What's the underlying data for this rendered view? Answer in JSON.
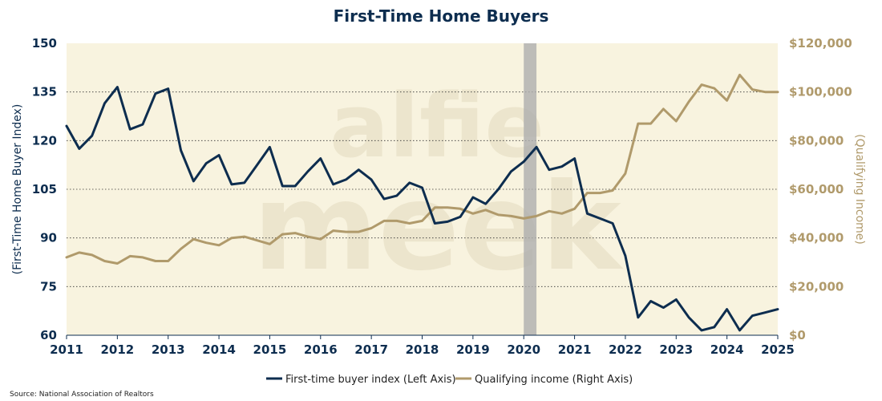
{
  "chart_data": {
    "type": "line",
    "title": "First-Time Home Buyers",
    "ylabel_left": "(First-Time Home Buyer Index)",
    "ylabel_right": "(Qualifying Income)",
    "ylim_left": [
      60,
      150
    ],
    "ylim_right": [
      0,
      120000
    ],
    "left_ticks": [
      "150",
      "135",
      "120",
      "105",
      "90",
      "75",
      "60"
    ],
    "right_ticks": [
      "$120,000",
      "$100,000",
      "$80,000",
      "$60,000",
      "$40,000",
      "$20,000",
      "$0"
    ],
    "xlim": [
      2011,
      2025
    ],
    "x_ticks": [
      "2011",
      "2012",
      "2013",
      "2014",
      "2015",
      "2016",
      "2017",
      "2018",
      "2019",
      "2020",
      "2021",
      "2022",
      "2023",
      "2024",
      "2025"
    ],
    "shaded_period": [
      2020.0,
      2020.25
    ],
    "series": [
      {
        "name": "First-time buyer index (Left Axis)",
        "axis": "left",
        "color": "#0d2d4f",
        "x": [
          2011.0,
          2011.25,
          2011.5,
          2011.75,
          2012.0,
          2012.25,
          2012.5,
          2012.75,
          2013.0,
          2013.25,
          2013.5,
          2013.75,
          2014.0,
          2014.25,
          2014.5,
          2014.75,
          2015.0,
          2015.25,
          2015.5,
          2015.75,
          2016.0,
          2016.25,
          2016.5,
          2016.75,
          2017.0,
          2017.25,
          2017.5,
          2017.75,
          2018.0,
          2018.25,
          2018.5,
          2018.75,
          2019.0,
          2019.25,
          2019.5,
          2019.75,
          2020.0,
          2020.25,
          2020.5,
          2020.75,
          2021.0,
          2021.25,
          2021.5,
          2021.75,
          2022.0,
          2022.25,
          2022.5,
          2022.75,
          2023.0,
          2023.25,
          2023.5,
          2023.75,
          2024.0,
          2024.25,
          2024.5,
          2024.75,
          2025.0
        ],
        "values": [
          124.5,
          117.5,
          121.5,
          131.5,
          136.5,
          123.5,
          125,
          134.5,
          136,
          117,
          107.5,
          113,
          115.5,
          106.5,
          107,
          112.5,
          118,
          106,
          106,
          110.5,
          114.5,
          106.5,
          108,
          111,
          108,
          102,
          103,
          107,
          105.5,
          94.5,
          95,
          96.5,
          102.5,
          100.5,
          105,
          110.5,
          113.5,
          118,
          111,
          112,
          114.5,
          97.5,
          96,
          94.5,
          84.5,
          65.5,
          70.5,
          68.5,
          71,
          65.5,
          61.5,
          62.5,
          68,
          61.5,
          66,
          67,
          68
        ]
      },
      {
        "name": "Qualifying income (Right Axis)",
        "axis": "right",
        "color": "#b09a6b",
        "x": [
          2011.0,
          2011.25,
          2011.5,
          2011.75,
          2012.0,
          2012.25,
          2012.5,
          2012.75,
          2013.0,
          2013.25,
          2013.5,
          2013.75,
          2014.0,
          2014.25,
          2014.5,
          2014.75,
          2015.0,
          2015.25,
          2015.5,
          2015.75,
          2016.0,
          2016.25,
          2016.5,
          2016.75,
          2017.0,
          2017.25,
          2017.5,
          2017.75,
          2018.0,
          2018.25,
          2018.5,
          2018.75,
          2019.0,
          2019.25,
          2019.5,
          2019.75,
          2020.0,
          2020.25,
          2020.5,
          2020.75,
          2021.0,
          2021.25,
          2021.5,
          2021.75,
          2022.0,
          2022.25,
          2022.5,
          2022.75,
          2023.0,
          2023.25,
          2023.5,
          2023.75,
          2024.0,
          2024.25,
          2024.5,
          2024.75,
          2025.0
        ],
        "values": [
          32000,
          34000,
          33000,
          30500,
          29500,
          32500,
          32000,
          30500,
          30500,
          35500,
          39500,
          38000,
          37000,
          40000,
          40500,
          39000,
          37500,
          41500,
          42000,
          40500,
          39500,
          43000,
          42500,
          42500,
          44000,
          47000,
          47000,
          46000,
          47000,
          52500,
          52500,
          52000,
          50000,
          51500,
          49500,
          49000,
          48000,
          49000,
          51000,
          50000,
          52000,
          58500,
          58500,
          59500,
          66500,
          87000,
          87000,
          93000,
          88000,
          96000,
          103000,
          101500,
          96500,
          107000,
          101000,
          100000,
          100000
        ]
      }
    ],
    "watermark": [
      "alfie",
      "meek"
    ],
    "source": "Source: National Association of Realtors"
  }
}
